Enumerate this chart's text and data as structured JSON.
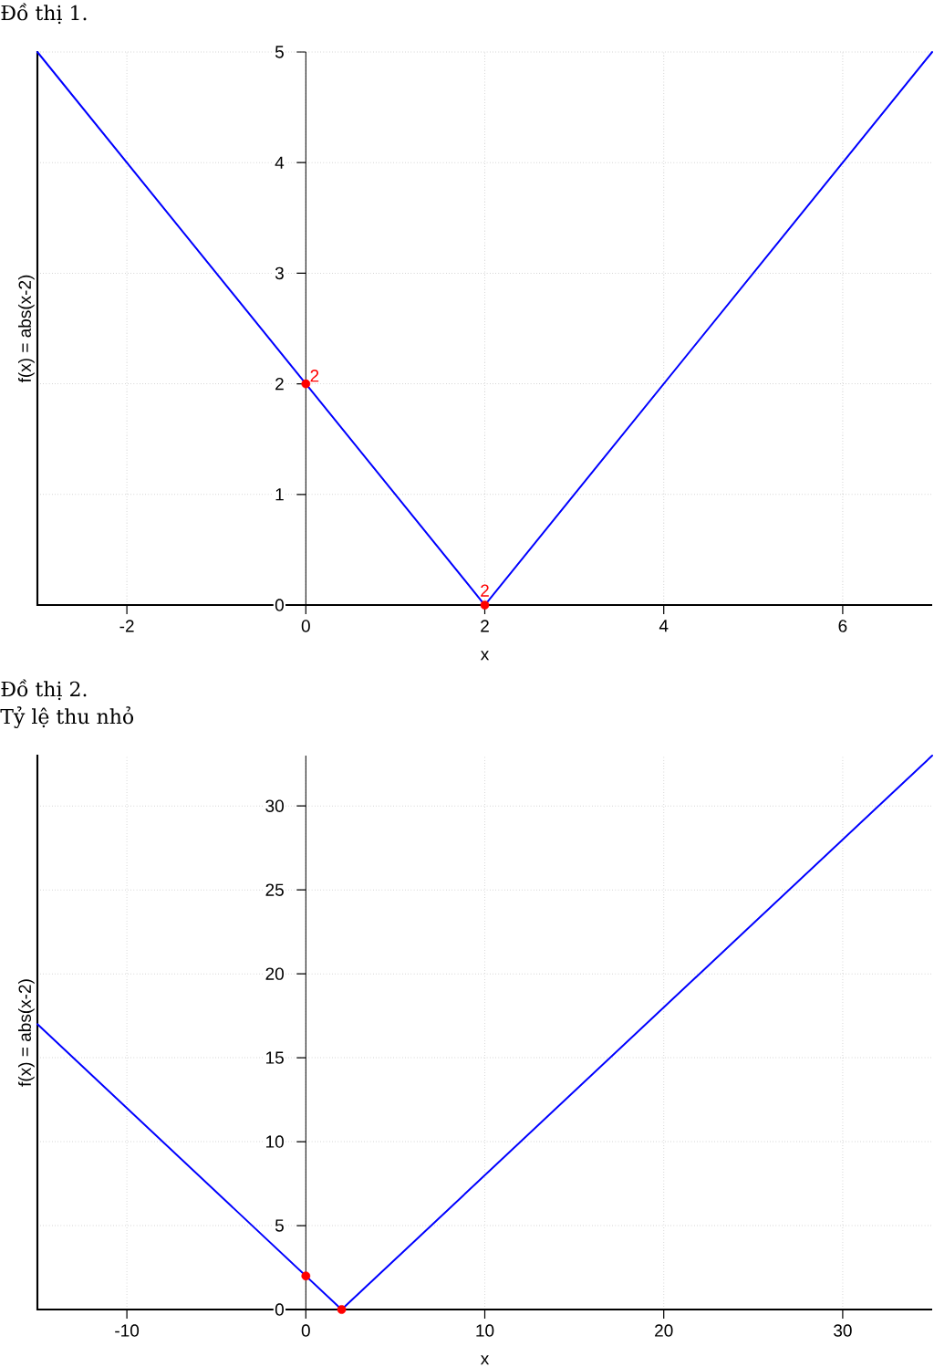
{
  "chart_data": [
    {
      "type": "line",
      "title": "Đồ thị 1.",
      "xlabel": "x",
      "ylabel": "f(x) = abs(x-2)",
      "series": [
        {
          "color": "#0000ff",
          "x": [
            -3,
            2,
            7
          ],
          "values": [
            5,
            0,
            5
          ]
        },
        {
          "type": "scatter",
          "color": "#ff0000",
          "marker": "circle",
          "x": [
            0,
            2
          ],
          "values": [
            2,
            0
          ]
        }
      ],
      "annotations": [
        {
          "text": "2",
          "x": 0,
          "y": 2
        },
        {
          "text": "2",
          "x": 2,
          "y": 0
        }
      ],
      "xlim": [
        -3,
        7
      ],
      "ylim": [
        0,
        5
      ],
      "xticks": [
        -2,
        0,
        2,
        4,
        6
      ],
      "yticks": [
        0,
        1,
        2,
        3,
        4,
        5
      ],
      "grid": true
    },
    {
      "type": "line",
      "title": "Đồ thị 2.",
      "subtitle": "Tỷ lệ thu nhỏ",
      "xlabel": "x",
      "ylabel": "f(x) = abs(x-2)",
      "series": [
        {
          "color": "#0000ff",
          "x": [
            -15,
            2,
            35
          ],
          "values": [
            17,
            0,
            33
          ]
        },
        {
          "type": "scatter",
          "color": "#ff0000",
          "marker": "circle",
          "x": [
            0,
            2
          ],
          "values": [
            2,
            0
          ]
        }
      ],
      "xlim": [
        -15,
        35
      ],
      "ylim": [
        0,
        33
      ],
      "xticks": [
        -10,
        0,
        10,
        20,
        30
      ],
      "yticks": [
        0,
        5,
        10,
        15,
        20,
        25,
        30
      ],
      "grid": true
    }
  ]
}
